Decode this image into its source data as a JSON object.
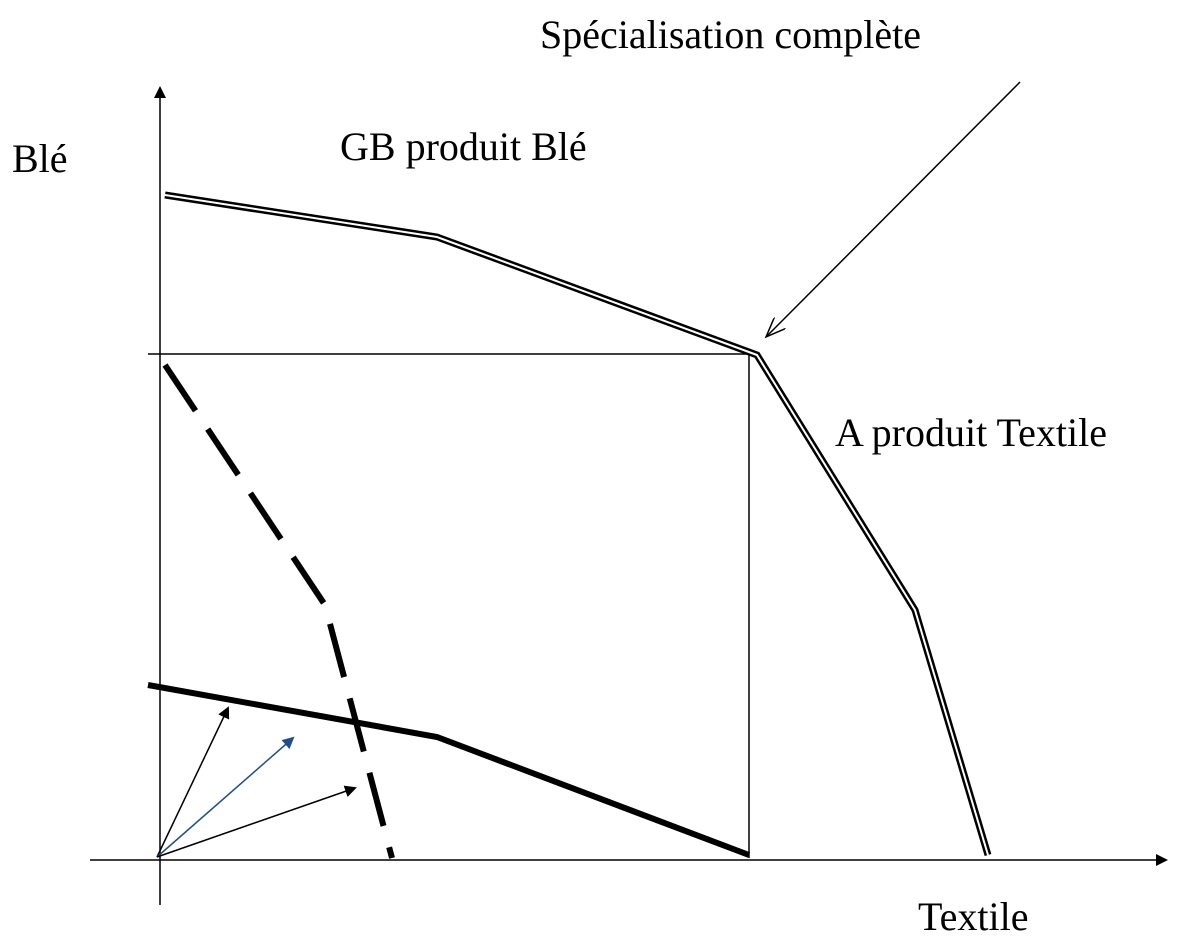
{
  "labels": {
    "specialisation": "Spécialisation complète",
    "y_axis": "Blé",
    "gb": "GB produit Blé",
    "a": "A produit Textile",
    "x_axis": "Textile"
  }
}
